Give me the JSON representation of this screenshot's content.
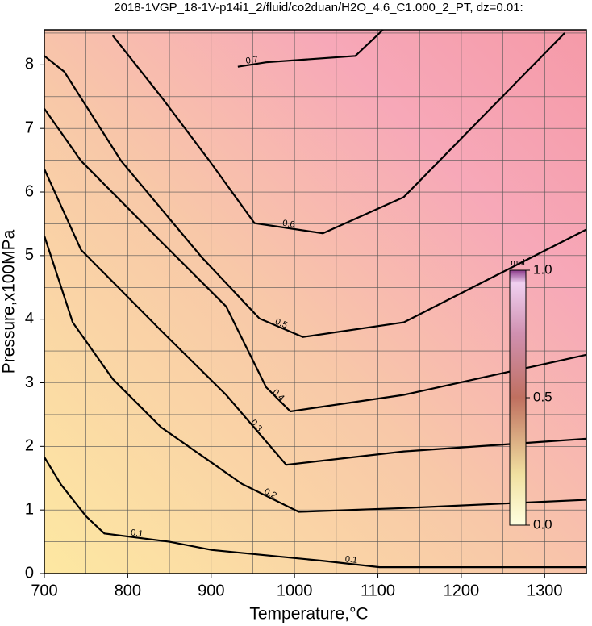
{
  "chart_data": {
    "type": "contour",
    "title": "2018-1VGP_18-1V-p14i1_2/fluid/co2duan/H2O_4.6_C1.000_2_PT, dz=0.01:",
    "xlabel": "Temperature,°C",
    "ylabel": "Pressure,x100MPa",
    "xlim": [
      700,
      1350
    ],
    "ylim": [
      0,
      8.55
    ],
    "xticks": [
      700,
      800,
      900,
      1000,
      1100,
      1200,
      1300
    ],
    "yticks": [
      0,
      1,
      2,
      3,
      4,
      5,
      6,
      7,
      8
    ],
    "grid_xticks": [
      750,
      800,
      850,
      900,
      950,
      1000,
      1050,
      1100,
      1150,
      1200,
      1250,
      1300
    ],
    "grid_yticks": [
      0.5,
      1,
      1.5,
      2,
      2.5,
      3,
      3.5,
      4,
      4.5,
      5,
      5.5,
      6,
      6.5,
      7,
      7.5,
      8,
      8.5
    ],
    "grid": true,
    "contours": [
      {
        "level": 0.1,
        "x": [
          700,
          720,
          750,
          772,
          850,
          901,
          1034,
          1102,
          1350
        ],
        "y": [
          1.83,
          1.4,
          0.9,
          0.63,
          0.5,
          0.37,
          0.2,
          0.1,
          0.1
        ]
      },
      {
        "level": 0.2,
        "x": [
          700,
          734,
          782,
          840,
          937,
          1005,
          1131,
          1350
        ],
        "y": [
          5.31,
          3.95,
          3.06,
          2.3,
          1.41,
          0.97,
          1.03,
          1.16
        ]
      },
      {
        "level": 0.3,
        "x": [
          700,
          744,
          840,
          918,
          990,
          1131,
          1350
        ],
        "y": [
          6.36,
          5.09,
          3.82,
          2.81,
          1.71,
          1.92,
          2.12
        ]
      },
      {
        "level": 0.4,
        "x": [
          700,
          744,
          840,
          918,
          966,
          995,
          1131,
          1350
        ],
        "y": [
          7.31,
          6.49,
          5.22,
          4.2,
          2.93,
          2.55,
          2.81,
          3.44
        ]
      },
      {
        "level": 0.5,
        "x": [
          700,
          724,
          792,
          889,
          958,
          1010,
          1131,
          1350
        ],
        "y": [
          8.14,
          7.89,
          6.49,
          4.97,
          4.01,
          3.72,
          3.95,
          5.41
        ]
      },
      {
        "level": 0.6,
        "x": [
          782,
          840,
          898,
          952,
          1034,
          1131,
          1324
        ],
        "y": [
          8.46,
          7.5,
          6.49,
          5.51,
          5.35,
          5.92,
          8.5
        ]
      },
      {
        "level": 0.7,
        "x": [
          932,
          966,
          1073,
          1106
        ],
        "y": [
          7.97,
          8.04,
          8.14,
          8.55
        ]
      }
    ],
    "colorbar": {
      "label": "mol",
      "lim": [
        0,
        1
      ],
      "ticks": [
        {
          "value": 0,
          "label": "0.0"
        },
        {
          "value": 0.5,
          "label": "0.5"
        },
        {
          "value": 1,
          "label": "1.0"
        }
      ]
    }
  }
}
